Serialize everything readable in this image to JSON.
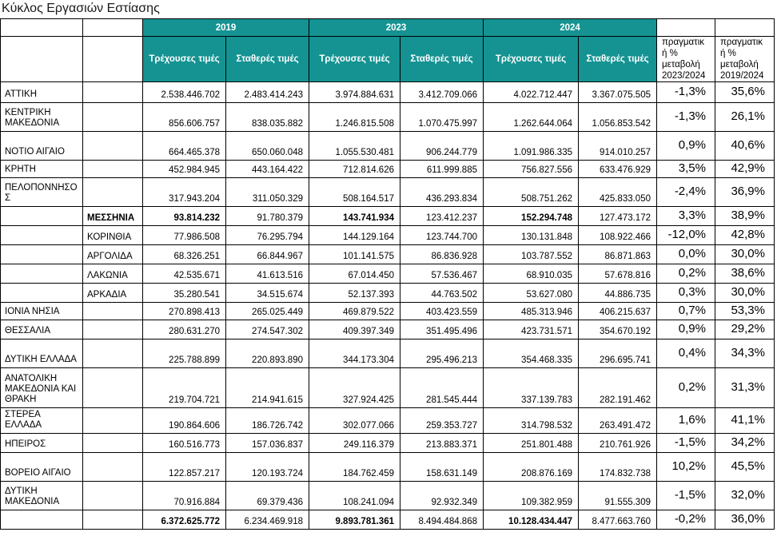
{
  "title": "Κύκλος Εργασιών Εστίασης",
  "colors": {
    "header_teal": "#149392",
    "header_text": "#ffffff",
    "border": "#000000"
  },
  "table": {
    "year_groups": [
      "2019",
      "2023",
      "2024"
    ],
    "subheaders": {
      "current": "Τρέχουσες τιμές",
      "constant": "Σταθερές τιμές"
    },
    "pct_headers": [
      "πραγματικ\nή %\nμεταβολή\n2023/2024",
      "πραγματικ\nή %\nμεταβολή\n2019/2024"
    ],
    "rows": [
      {
        "region": "ΑΤΤΙΚΗ",
        "subregion": "",
        "y2019_cur": "2.538.446.702",
        "y2019_con": "2.483.414.243",
        "y2023_cur": "3.974.884.631",
        "y2023_con": "3.412.709.066",
        "y2024_cur": "4.022.712.447",
        "y2024_con": "3.367.075.505",
        "pct_2324": "-1,3%",
        "pct_1924": "35,6%",
        "emph": false
      },
      {
        "region": "ΚΕΝΤΡΙΚΗ ΜΑΚΕΔΟΝΙΑ",
        "subregion": "",
        "y2019_cur": "856.606.757",
        "y2019_con": "838.035.882",
        "y2023_cur": "1.246.815.508",
        "y2023_con": "1.070.475.997",
        "y2024_cur": "1.262.644.064",
        "y2024_con": "1.056.853.542",
        "pct_2324": "-1,3%",
        "pct_1924": "26,1%",
        "emph": false
      },
      {
        "region": "ΝΟΤΙΟ ΑΙΓΑΙΟ",
        "subregion": "",
        "y2019_cur": "664.465.378",
        "y2019_con": "650.060.048",
        "y2023_cur": "1.055.530.481",
        "y2023_con": "906.244.779",
        "y2024_cur": "1.091.986.335",
        "y2024_con": "914.010.257",
        "pct_2324": "0,9%",
        "pct_1924": "40,6%",
        "emph": false
      },
      {
        "region": "ΚΡΗΤΗ",
        "subregion": "",
        "y2019_cur": "452.984.945",
        "y2019_con": "443.164.422",
        "y2023_cur": "712.814.626",
        "y2023_con": "611.999.885",
        "y2024_cur": "756.827.556",
        "y2024_con": "633.476.929",
        "pct_2324": "3,5%",
        "pct_1924": "42,9%",
        "emph": false
      },
      {
        "region": "ΠΕΛΟΠΟΝΝΗΣΟ\nΣ",
        "subregion": "",
        "y2019_cur": "317.943.204",
        "y2019_con": "311.050.329",
        "y2023_cur": "508.164.517",
        "y2023_con": "436.293.834",
        "y2024_cur": "508.751.262",
        "y2024_con": "425.833.050",
        "pct_2324": "-2,4%",
        "pct_1924": "36,9%",
        "emph": false
      },
      {
        "region": "",
        "subregion": "ΜΕΣΣΗΝΙΑ",
        "y2019_cur": "93.814.232",
        "y2019_con": "91.780.379",
        "y2023_cur": "143.741.934",
        "y2023_con": "123.412.237",
        "y2024_cur": "152.294.748",
        "y2024_con": "127.473.172",
        "pct_2324": "3,3%",
        "pct_1924": "38,9%",
        "emph": true
      },
      {
        "region": "",
        "subregion": "ΚΟΡΙΝΘΙΑ",
        "y2019_cur": "77.986.508",
        "y2019_con": "76.295.794",
        "y2023_cur": "144.129.164",
        "y2023_con": "123.744.700",
        "y2024_cur": "130.131.848",
        "y2024_con": "108.922.466",
        "pct_2324": "-12,0%",
        "pct_1924": "42,8%",
        "emph": false
      },
      {
        "region": "",
        "subregion": "ΑΡΓΟΛΙΔΑ",
        "y2019_cur": "68.326.251",
        "y2019_con": "66.844.967",
        "y2023_cur": "101.141.575",
        "y2023_con": "86.836.928",
        "y2024_cur": "103.787.552",
        "y2024_con": "86.871.863",
        "pct_2324": "0,0%",
        "pct_1924": "30,0%",
        "emph": false
      },
      {
        "region": "",
        "subregion": "ΛΑΚΩΝΙΑ",
        "y2019_cur": "42.535.671",
        "y2019_con": "41.613.516",
        "y2023_cur": "67.014.450",
        "y2023_con": "57.536.467",
        "y2024_cur": "68.910.035",
        "y2024_con": "57.678.816",
        "pct_2324": "0,2%",
        "pct_1924": "38,6%",
        "emph": false
      },
      {
        "region": "",
        "subregion": "ΑΡΚΑΔΙΑ",
        "y2019_cur": "35.280.541",
        "y2019_con": "34.515.674",
        "y2023_cur": "52.137.393",
        "y2023_con": "44.763.502",
        "y2024_cur": "53.627.080",
        "y2024_con": "44.886.735",
        "pct_2324": "0,3%",
        "pct_1924": "30,0%",
        "emph": false
      },
      {
        "region": "ΙΟΝΙΑ ΝΗΣΙΑ",
        "subregion": "",
        "y2019_cur": "270.898.413",
        "y2019_con": "265.025.449",
        "y2023_cur": "469.879.522",
        "y2023_con": "403.423.559",
        "y2024_cur": "485.313.946",
        "y2024_con": "406.215.637",
        "pct_2324": "0,7%",
        "pct_1924": "53,3%",
        "emph": false
      },
      {
        "region": "ΘΕΣΣΑΛΙΑ",
        "subregion": "",
        "y2019_cur": "280.631.270",
        "y2019_con": "274.547.302",
        "y2023_cur": "409.397.349",
        "y2023_con": "351.495.496",
        "y2024_cur": "423.731.571",
        "y2024_con": "354.670.192",
        "pct_2324": "0,9%",
        "pct_1924": "29,2%",
        "emph": false
      },
      {
        "region": "ΔΥΤΙΚΗ ΕΛΛΑΔΑ",
        "subregion": "",
        "y2019_cur": "225.788.899",
        "y2019_con": "220.893.890",
        "y2023_cur": "344.173.304",
        "y2023_con": "295.496.213",
        "y2024_cur": "354.468.335",
        "y2024_con": "296.695.741",
        "pct_2324": "0,4%",
        "pct_1924": "34,3%",
        "emph": false
      },
      {
        "region": "ΑΝΑΤΟΛΙΚΗ ΜΑΚΕΔΟΝΙΑ ΚΑΙ ΘΡΑΚΗ",
        "subregion": "",
        "y2019_cur": "219.704.721",
        "y2019_con": "214.941.615",
        "y2023_cur": "327.924.425",
        "y2023_con": "281.545.444",
        "y2024_cur": "337.139.783",
        "y2024_con": "282.191.462",
        "pct_2324": "0,2%",
        "pct_1924": "31,3%",
        "emph": false
      },
      {
        "region": "ΣΤΕΡΕΑ ΕΛΛΑΔΑ",
        "subregion": "",
        "y2019_cur": "190.864.606",
        "y2019_con": "186.726.742",
        "y2023_cur": "302.077.066",
        "y2023_con": "259.353.727",
        "y2024_cur": "314.798.532",
        "y2024_con": "263.491.472",
        "pct_2324": "1,6%",
        "pct_1924": "41,1%",
        "emph": false
      },
      {
        "region": "ΗΠΕΙΡΟΣ",
        "subregion": "",
        "y2019_cur": "160.516.773",
        "y2019_con": "157.036.837",
        "y2023_cur": "249.116.379",
        "y2023_con": "213.883.371",
        "y2024_cur": "251.801.488",
        "y2024_con": "210.761.926",
        "pct_2324": "-1,5%",
        "pct_1924": "34,2%",
        "emph": false
      },
      {
        "region": "ΒΟΡΕΙΟ ΑΙΓΑΙΟ",
        "subregion": "",
        "y2019_cur": "122.857.217",
        "y2019_con": "120.193.724",
        "y2023_cur": "184.762.459",
        "y2023_con": "158.631.149",
        "y2024_cur": "208.876.169",
        "y2024_con": "174.832.738",
        "pct_2324": "10,2%",
        "pct_1924": "45,5%",
        "emph": false
      },
      {
        "region": "ΔΥΤΙΚΗ ΜΑΚΕΔΟΝΙΑ",
        "subregion": "",
        "y2019_cur": "70.916.884",
        "y2019_con": "69.379.436",
        "y2023_cur": "108.241.094",
        "y2023_con": "92.932.349",
        "y2024_cur": "109.382.959",
        "y2024_con": "91.555.309",
        "pct_2324": "-1,5%",
        "pct_1924": "32,0%",
        "emph": false
      },
      {
        "region": "",
        "subregion": "",
        "y2019_cur": "6.372.625.772",
        "y2019_con": "6.234.469.918",
        "y2023_cur": "9.893.781.361",
        "y2023_con": "8.494.484.868",
        "y2024_cur": "10.128.434.447",
        "y2024_con": "8.477.663.760",
        "pct_2324": "-0,2%",
        "pct_1924": "36,0%",
        "emph": true,
        "is_total": true
      }
    ]
  }
}
